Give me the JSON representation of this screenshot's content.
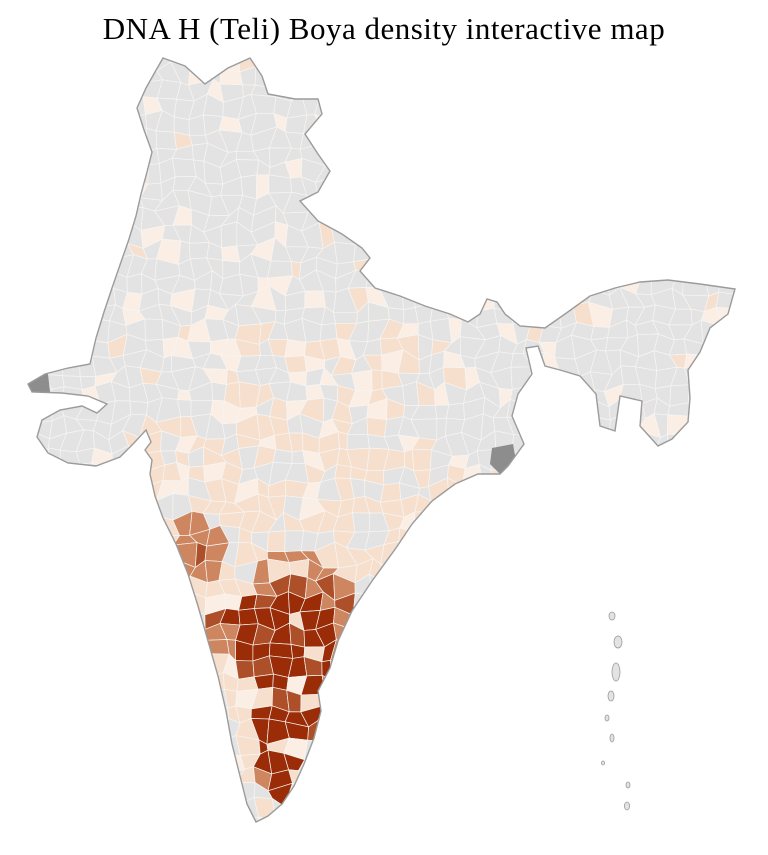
{
  "page": {
    "title": "DNA H (Teli) Boya density interactive map"
  },
  "map": {
    "name": "india-district-density-choropleth",
    "background": "#ffffff",
    "outline_color": "#9b9b9b",
    "district_line_color": "#f7f5f3",
    "density_colors": {
      "none": "#e3e3e3",
      "very_low": "#fbeee5",
      "low": "#f6dfcd",
      "medium": "#cd8660",
      "high": "#ad4f28",
      "very_high": "#9a2c07",
      "delta_gray": "#8d8d8d"
    },
    "density_scale_order": [
      "none",
      "very_low",
      "low",
      "medium",
      "high",
      "very_high"
    ]
  }
}
